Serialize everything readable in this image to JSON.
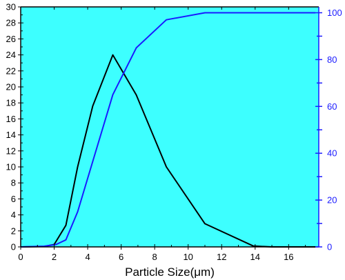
{
  "chart_data": {
    "type": "line",
    "xlabel": "Particle Size(μm)",
    "ylabel": "",
    "y2label": "",
    "xlim": [
      0,
      17.8
    ],
    "ylim": [
      0,
      30
    ],
    "y2lim": [
      0,
      102.5
    ],
    "x_ticks": [
      0,
      2,
      4,
      6,
      8,
      10,
      12,
      14,
      16
    ],
    "y_ticks": [
      0,
      2,
      4,
      6,
      8,
      10,
      12,
      14,
      16,
      18,
      20,
      22,
      24,
      26,
      28,
      30
    ],
    "y2_ticks": [
      0,
      20,
      40,
      60,
      80,
      100
    ],
    "grid": false,
    "background_color": "#3dffff",
    "series": [
      {
        "axis": "left",
        "color": "#000000",
        "x": [
          0,
          1.4,
          2.0,
          2.7,
          3.4,
          4.3,
          5.5,
          6.9,
          8.7,
          11.0,
          13.9,
          15.0,
          17.6
        ],
        "y": [
          0,
          0.05,
          0.3,
          2.7,
          10.0,
          17.6,
          24.0,
          19.0,
          10.0,
          2.9,
          0.1,
          0,
          0
        ]
      },
      {
        "axis": "right",
        "color": "#1a1aff",
        "x": [
          0,
          1.4,
          2.1,
          2.7,
          3.4,
          4.3,
          5.5,
          6.9,
          8.7,
          11.0,
          13.9,
          15.0,
          17.6
        ],
        "y": [
          0,
          0.3,
          1.0,
          3.0,
          15.0,
          36.5,
          65.0,
          85.0,
          97.0,
          100,
          100,
          100,
          100
        ]
      }
    ]
  }
}
